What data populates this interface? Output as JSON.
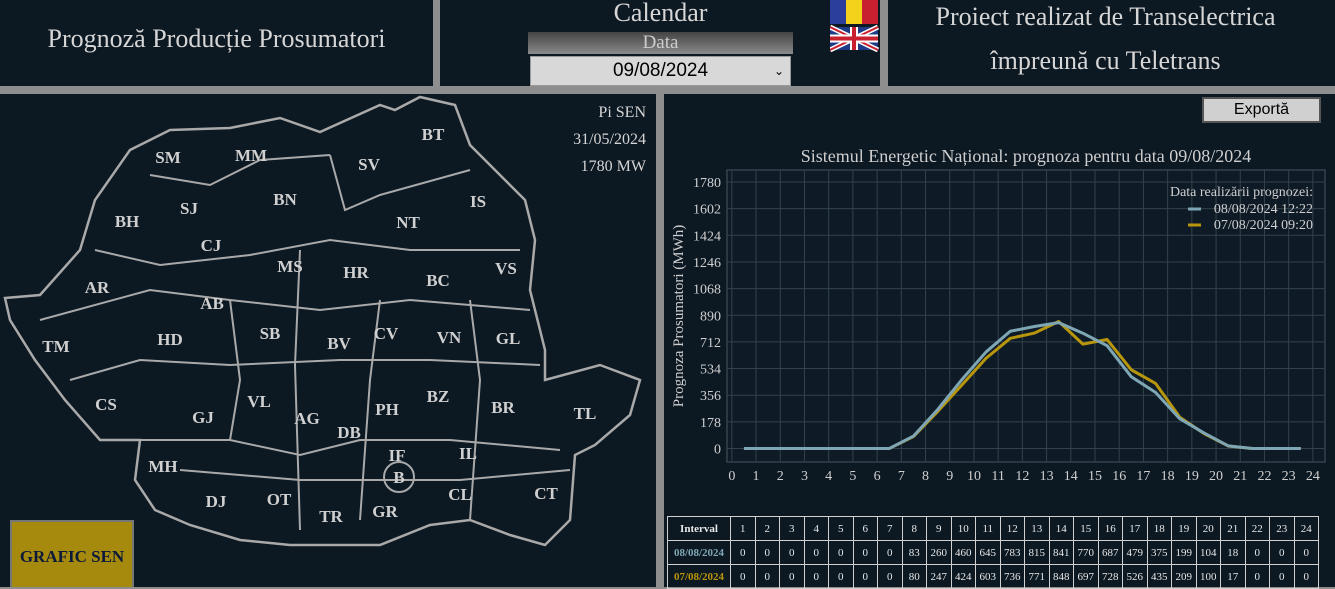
{
  "header": {
    "title": "Prognoză Producție Prosumatori",
    "calendar": "Calendar",
    "date_label": "Data",
    "date_value": "09/08/2024",
    "project_lines": [
      "Proiect realizat de Transelectrica",
      "împreună cu Teletrans"
    ]
  },
  "map": {
    "info": [
      "Pi SEN",
      "31/05/2024",
      "1780 MW"
    ],
    "counties": [
      "SM",
      "MM",
      "BT",
      "SV",
      "BH",
      "SJ",
      "BN",
      "NT",
      "IS",
      "CJ",
      "MS",
      "HR",
      "BC",
      "VS",
      "AR",
      "AB",
      "SB",
      "CV",
      "VN",
      "GL",
      "TM",
      "HD",
      "BV",
      "CS",
      "GJ",
      "VL",
      "AG",
      "DB",
      "PH",
      "BZ",
      "BR",
      "TL",
      "MH",
      "DJ",
      "OT",
      "TR",
      "GR",
      "IF",
      "B",
      "IL",
      "CL",
      "CT"
    ],
    "button": "GRAFIC SEN"
  },
  "export_button": "Exportă",
  "chart_data": {
    "type": "line",
    "title": "Sistemul Energetic Național: prognoza pentru data 09/08/2024",
    "y_label": "Prognoza Prosumatori (MWh)",
    "legend_title": "Data realizării prognozei:",
    "legend_position": "upper right",
    "grid": true,
    "x": [
      0.5,
      1.5,
      2.5,
      3.5,
      4.5,
      5.5,
      6.5,
      7.5,
      8.5,
      9.5,
      10.5,
      11.5,
      12.5,
      13.5,
      14.5,
      15.5,
      16.5,
      17.5,
      18.5,
      19.5,
      20.5,
      21.5,
      22.5,
      23.5
    ],
    "xlim": [
      -0.2,
      24.5
    ],
    "xticks": [
      0,
      1,
      2,
      3,
      4,
      5,
      6,
      7,
      8,
      9,
      10,
      11,
      12,
      13,
      14,
      15,
      16,
      17,
      18,
      19,
      20,
      21,
      22,
      23,
      24
    ],
    "ylim": [
      -90,
      1860
    ],
    "yticks": [
      0,
      178,
      356,
      534,
      712,
      890,
      1068,
      1246,
      1424,
      1602,
      1780
    ],
    "series": [
      {
        "name": "08/08/2024 12:22",
        "color": "#7fa6b4",
        "values": [
          0,
          0,
          0,
          0,
          0,
          0,
          0,
          83,
          260,
          460,
          645,
          783,
          815,
          841,
          770,
          687,
          479,
          375,
          199,
          104,
          18,
          0,
          0,
          0
        ]
      },
      {
        "name": "07/08/2024 09:20",
        "color": "#b8960c",
        "values": [
          0,
          0,
          0,
          0,
          0,
          0,
          0,
          80,
          247,
          424,
          603,
          736,
          771,
          848,
          697,
          728,
          526,
          435,
          209,
          100,
          17,
          0,
          0,
          0
        ]
      }
    ]
  },
  "table": {
    "header": "Interval",
    "intervals": [
      1,
      2,
      3,
      4,
      5,
      6,
      7,
      8,
      9,
      10,
      11,
      12,
      13,
      14,
      15,
      16,
      17,
      18,
      19,
      20,
      21,
      22,
      23,
      24
    ],
    "row_labels": [
      "08/08/2024",
      "07/08/2024"
    ]
  }
}
